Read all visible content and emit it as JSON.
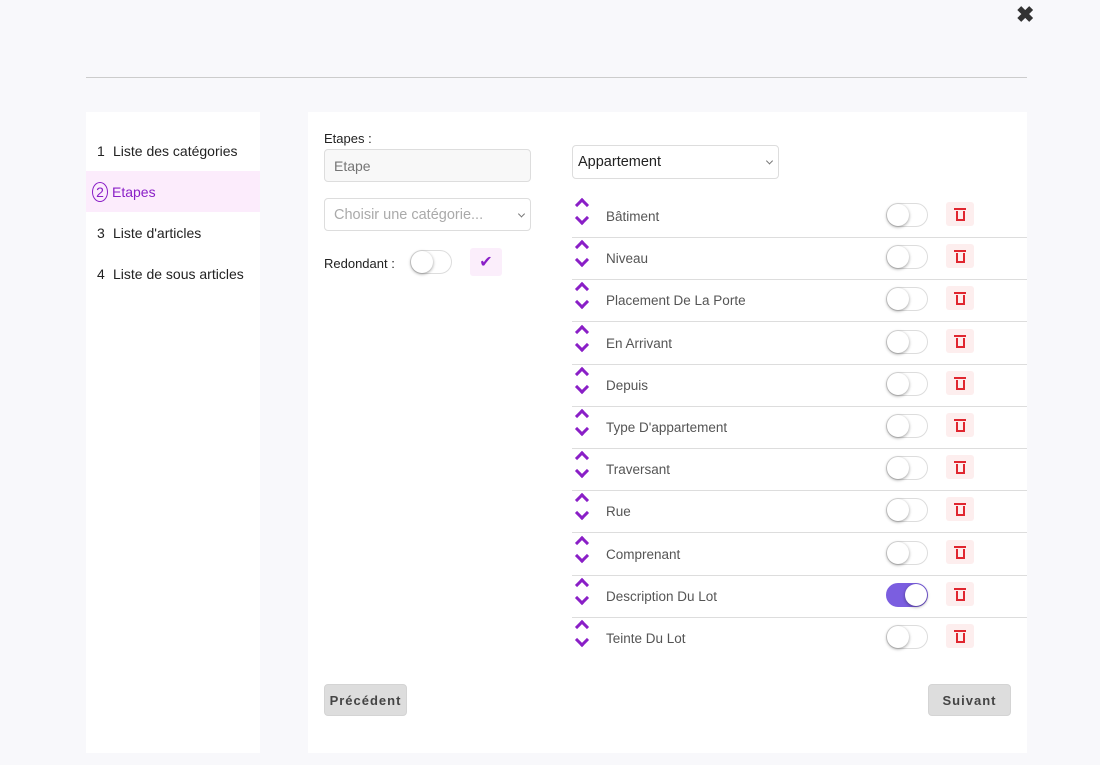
{
  "close_icon": "close-icon",
  "sidebar": {
    "items": [
      {
        "num": "1",
        "label": "Liste des catégories",
        "active": false
      },
      {
        "num": "2",
        "label": "Etapes",
        "active": true
      },
      {
        "num": "3",
        "label": "Liste d'articles",
        "active": false
      },
      {
        "num": "4",
        "label": "Liste de sous articles",
        "active": false
      }
    ]
  },
  "form": {
    "etapes_label": "Etapes :",
    "etape_placeholder": "Etape",
    "category_placeholder": "Choisir une catégorie...",
    "redondant_label": "Redondant :",
    "redondant_on": false,
    "check_icon": "check-icon"
  },
  "type_select": {
    "value": "Appartement"
  },
  "rows": [
    {
      "name": "Bâtiment",
      "on": false
    },
    {
      "name": "Niveau",
      "on": false
    },
    {
      "name": "Placement De La Porte",
      "on": false
    },
    {
      "name": "En Arrivant",
      "on": false
    },
    {
      "name": "Depuis",
      "on": false
    },
    {
      "name": "Type D'appartement",
      "on": false
    },
    {
      "name": "Traversant",
      "on": false
    },
    {
      "name": "Rue",
      "on": false
    },
    {
      "name": "Comprenant",
      "on": false
    },
    {
      "name": "Description Du Lot",
      "on": true
    },
    {
      "name": "Teinte Du Lot",
      "on": false
    }
  ],
  "buttons": {
    "prev": "Précédent",
    "next": "Suivant"
  },
  "colors": {
    "accent": "#8a1fc7",
    "toggle_on": "#7b5ee0",
    "danger": "#e0262f"
  }
}
